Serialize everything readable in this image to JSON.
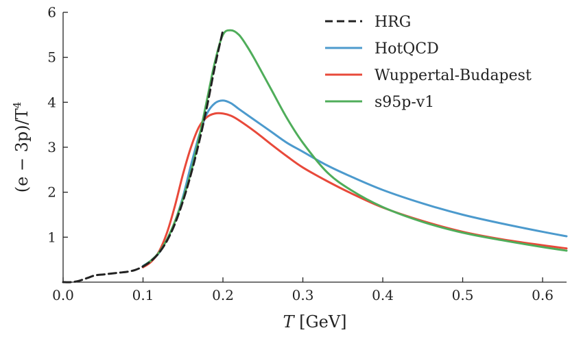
{
  "chart_data": {
    "type": "line",
    "title": "",
    "xlabel_var": "T",
    "xlabel_unit": "[GeV]",
    "ylabel": "(e − 3p)/T",
    "ylabel_exp": "4",
    "xlim": [
      0.0,
      0.63
    ],
    "ylim": [
      0,
      6
    ],
    "xticks": [
      0.0,
      0.1,
      0.2,
      0.3,
      0.4,
      0.5,
      0.6
    ],
    "xtick_labels": [
      "0.0",
      "0.1",
      "0.2",
      "0.3",
      "0.4",
      "0.5",
      "0.6"
    ],
    "yticks": [
      1,
      2,
      3,
      4,
      5,
      6
    ],
    "ytick_labels": [
      "1",
      "2",
      "3",
      "4",
      "5",
      "6"
    ],
    "legend_position": "top-right",
    "grid": false,
    "series": [
      {
        "name": "HRG",
        "color": "#222222",
        "dash": "dashed",
        "x": [
          0.0,
          0.01,
          0.02,
          0.03,
          0.04,
          0.05,
          0.06,
          0.07,
          0.08,
          0.09,
          0.1,
          0.11,
          0.12,
          0.13,
          0.14,
          0.15,
          0.16,
          0.17,
          0.18,
          0.19,
          0.2
        ],
        "y": [
          0.0,
          0.0,
          0.03,
          0.09,
          0.15,
          0.17,
          0.19,
          0.21,
          0.23,
          0.27,
          0.35,
          0.47,
          0.65,
          0.92,
          1.3,
          1.8,
          2.4,
          3.1,
          3.9,
          4.8,
          5.6
        ]
      },
      {
        "name": "HotQCD",
        "color": "#4c9acd",
        "dash": "solid",
        "x": [
          0.1,
          0.11,
          0.12,
          0.13,
          0.14,
          0.15,
          0.16,
          0.17,
          0.18,
          0.19,
          0.2,
          0.21,
          0.22,
          0.24,
          0.26,
          0.28,
          0.3,
          0.33,
          0.36,
          0.4,
          0.45,
          0.5,
          0.55,
          0.6,
          0.63
        ],
        "y": [
          0.36,
          0.48,
          0.65,
          0.95,
          1.35,
          1.9,
          2.6,
          3.25,
          3.75,
          3.98,
          4.04,
          3.98,
          3.85,
          3.6,
          3.35,
          3.1,
          2.9,
          2.6,
          2.35,
          2.05,
          1.75,
          1.5,
          1.3,
          1.12,
          1.02
        ]
      },
      {
        "name": "Wuppertal-Budapest",
        "color": "#e8493a",
        "dash": "solid",
        "x": [
          0.1,
          0.11,
          0.12,
          0.13,
          0.14,
          0.15,
          0.16,
          0.17,
          0.18,
          0.19,
          0.2,
          0.21,
          0.22,
          0.24,
          0.26,
          0.28,
          0.3,
          0.33,
          0.36,
          0.4,
          0.45,
          0.5,
          0.55,
          0.6,
          0.63
        ],
        "y": [
          0.33,
          0.45,
          0.68,
          1.1,
          1.7,
          2.4,
          3.0,
          3.45,
          3.67,
          3.75,
          3.75,
          3.7,
          3.6,
          3.35,
          3.07,
          2.8,
          2.55,
          2.25,
          1.98,
          1.66,
          1.36,
          1.12,
          0.95,
          0.82,
          0.75
        ]
      },
      {
        "name": "s95p-v1",
        "color": "#4fad5a",
        "dash": "solid",
        "x": [
          0.1,
          0.11,
          0.12,
          0.13,
          0.14,
          0.15,
          0.16,
          0.17,
          0.18,
          0.19,
          0.2,
          0.21,
          0.22,
          0.23,
          0.24,
          0.26,
          0.28,
          0.3,
          0.33,
          0.36,
          0.4,
          0.45,
          0.5,
          0.55,
          0.6,
          0.63
        ],
        "y": [
          0.35,
          0.48,
          0.66,
          0.95,
          1.35,
          1.85,
          2.45,
          3.2,
          4.05,
          4.9,
          5.5,
          5.6,
          5.5,
          5.25,
          4.95,
          4.3,
          3.65,
          3.1,
          2.45,
          2.05,
          1.67,
          1.34,
          1.1,
          0.93,
          0.78,
          0.7
        ]
      }
    ]
  }
}
